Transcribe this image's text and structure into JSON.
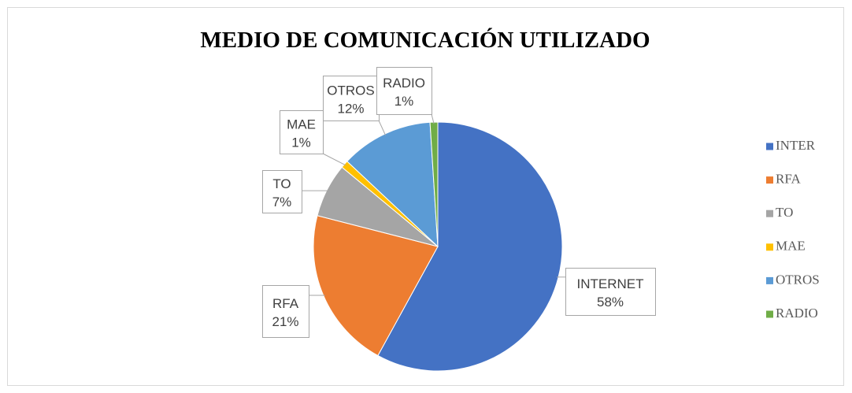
{
  "chart_data": {
    "type": "pie",
    "title": "MEDIO DE COMUNICACIÓN UTILIZADO",
    "categories": [
      "INTER",
      "RFA",
      "TO",
      "MAE",
      "OTROS",
      "RADIO"
    ],
    "label_names": [
      "INTERNET",
      "RFA",
      "TO",
      "MAE",
      "OTROS",
      "RADIO"
    ],
    "values": [
      58,
      21,
      7,
      1,
      12,
      1
    ],
    "value_labels": [
      "58%",
      "21%",
      "7%",
      "1%",
      "12%",
      "1%"
    ],
    "colors": [
      "#4472c4",
      "#ed7d31",
      "#a5a5a5",
      "#ffc000",
      "#5b9bd5",
      "#70ad47"
    ],
    "legend": "right"
  }
}
